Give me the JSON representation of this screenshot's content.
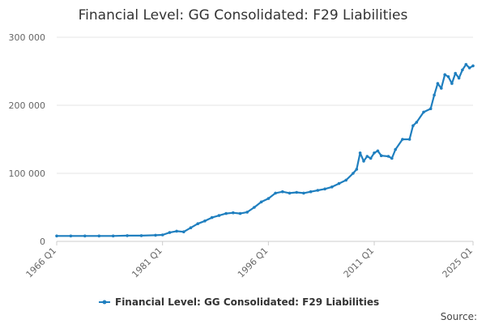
{
  "chart_data": {
    "type": "line",
    "title": "Financial Level: GG Consolidated: F29 Liabilities",
    "xlabel": "",
    "ylabel": "",
    "ylim": [
      0,
      300000
    ],
    "y_ticks": [
      0,
      100000,
      200000,
      300000
    ],
    "y_tick_labels": [
      "0",
      "100 000",
      "200 000",
      "300 000"
    ],
    "x_range": [
      "1966 Q1",
      "2025 Q1"
    ],
    "x_tick_labels": [
      "1966 Q1",
      "1981 Q1",
      "1996 Q1",
      "2011 Q1",
      "2025 Q1"
    ],
    "grid": "horizontal",
    "legend_position": "bottom-center",
    "color": "#1f7fbf",
    "series": [
      {
        "name": "Financial Level: GG Consolidated: F29 Liabilities",
        "x": [
          "1966 Q1",
          "1968 Q1",
          "1970 Q1",
          "1972 Q1",
          "1974 Q1",
          "1976 Q1",
          "1978 Q1",
          "1980 Q1",
          "1981 Q1",
          "1982 Q1",
          "1983 Q1",
          "1984 Q1",
          "1985 Q1",
          "1986 Q1",
          "1987 Q1",
          "1988 Q1",
          "1989 Q1",
          "1990 Q1",
          "1991 Q1",
          "1992 Q1",
          "1993 Q1",
          "1994 Q1",
          "1995 Q1",
          "1996 Q1",
          "1997 Q1",
          "1998 Q1",
          "1999 Q1",
          "2000 Q1",
          "2001 Q1",
          "2002 Q1",
          "2003 Q1",
          "2004 Q1",
          "2005 Q1",
          "2006 Q1",
          "2007 Q1",
          "2008 Q1",
          "2008 Q3",
          "2009 Q1",
          "2009 Q3",
          "2010 Q1",
          "2010 Q3",
          "2011 Q1",
          "2011 Q3",
          "2012 Q1",
          "2013 Q1",
          "2013 Q3",
          "2014 Q1",
          "2015 Q1",
          "2016 Q1",
          "2016 Q3",
          "2017 Q1",
          "2018 Q1",
          "2019 Q1",
          "2019 Q3",
          "2020 Q1",
          "2020 Q3",
          "2021 Q1",
          "2021 Q3",
          "2022 Q1",
          "2022 Q3",
          "2023 Q1",
          "2023 Q3",
          "2024 Q1",
          "2024 Q3",
          "2025 Q1"
        ],
        "values": [
          8000,
          8000,
          8000,
          8000,
          8000,
          8500,
          8500,
          9000,
          9500,
          13000,
          15000,
          14000,
          20000,
          26000,
          30000,
          35000,
          38000,
          41000,
          42000,
          41000,
          43000,
          50000,
          58000,
          63000,
          71000,
          73000,
          71000,
          72000,
          71000,
          73000,
          75000,
          77000,
          80000,
          85000,
          90000,
          100000,
          106000,
          130000,
          118000,
          125000,
          122000,
          130000,
          133000,
          126000,
          125000,
          122000,
          135000,
          150000,
          150000,
          170000,
          175000,
          190000,
          195000,
          215000,
          232000,
          225000,
          245000,
          242000,
          232000,
          247000,
          240000,
          252000,
          260000,
          255000,
          258000
        ]
      }
    ],
    "source_label": "Source:"
  }
}
